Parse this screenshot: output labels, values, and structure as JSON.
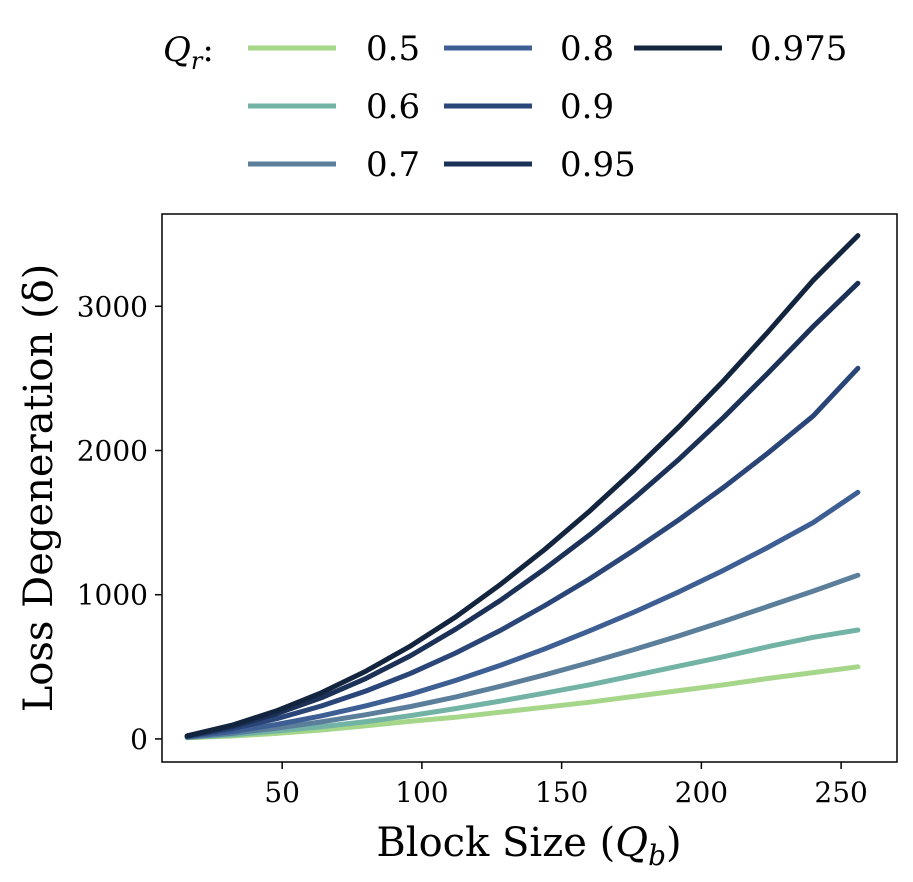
{
  "chart_data": {
    "type": "line",
    "title": "",
    "xlabel": "Block Size (",
    "xlabel_symbol": "Q",
    "xlabel_sub": "b",
    "xlabel_close": ")",
    "ylabel": "Loss Degeneration (δ)",
    "xlim": [
      7,
      270
    ],
    "ylim": [
      -160,
      3640
    ],
    "xticks": [
      50,
      100,
      150,
      200,
      250
    ],
    "yticks": [
      0,
      1000,
      2000,
      3000
    ],
    "legend": {
      "title_symbol": "Q",
      "title_sub": "r",
      "title_suffix": ":",
      "placement": "top, outside, 3 columns"
    },
    "x": [
      16,
      32,
      48,
      64,
      80,
      96,
      112,
      128,
      144,
      160,
      176,
      192,
      208,
      224,
      240,
      256
    ],
    "series": [
      {
        "name": "0.5",
        "color": "#a5d68a",
        "values": [
          8,
          20,
          38,
          62,
          92,
          122,
          150,
          185,
          220,
          255,
          295,
          335,
          375,
          420,
          460,
          500
        ]
      },
      {
        "name": "0.6",
        "color": "#72b3a5",
        "values": [
          10,
          28,
          55,
          85,
          120,
          162,
          210,
          262,
          318,
          375,
          440,
          505,
          570,
          640,
          705,
          755
        ]
      },
      {
        "name": "0.7",
        "color": "#5b7f9b",
        "values": [
          12,
          38,
          75,
          118,
          168,
          225,
          290,
          365,
          445,
          530,
          620,
          715,
          815,
          920,
          1025,
          1135
        ]
      },
      {
        "name": "0.8",
        "color": "#3e5f94",
        "values": [
          15,
          50,
          100,
          160,
          230,
          310,
          405,
          510,
          625,
          750,
          880,
          1020,
          1170,
          1330,
          1500,
          1710
        ]
      },
      {
        "name": "0.9",
        "color": "#2a4577",
        "values": [
          18,
          70,
          140,
          228,
          332,
          455,
          595,
          752,
          925,
          1110,
          1310,
          1520,
          1745,
          1985,
          2240,
          2570
        ]
      },
      {
        "name": "0.95",
        "color": "#1c3157",
        "values": [
          20,
          85,
          175,
          285,
          420,
          578,
          760,
          960,
          1180,
          1415,
          1670,
          1940,
          2230,
          2540,
          2860,
          3160
        ]
      },
      {
        "name": "0.975",
        "color": "#13243f",
        "values": [
          22,
          95,
          195,
          320,
          470,
          645,
          845,
          1070,
          1315,
          1580,
          1865,
          2165,
          2485,
          2825,
          3180,
          3490
        ]
      }
    ]
  }
}
